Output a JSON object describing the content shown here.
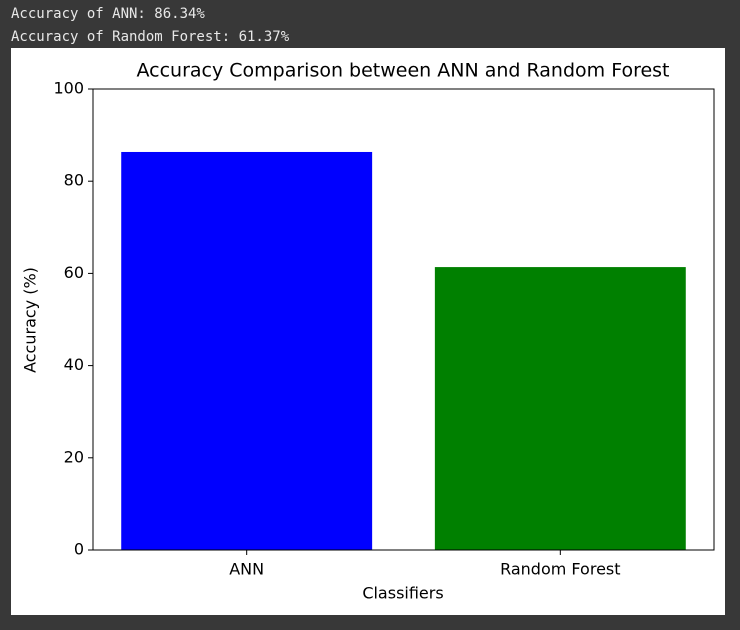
{
  "output_lines": [
    "Accuracy of ANN: 86.34%",
    "Accuracy of Random Forest: 61.37%"
  ],
  "chart_data": {
    "type": "bar",
    "title": "Accuracy Comparison between ANN and Random Forest",
    "x_label": "Classifiers",
    "y_label": "Accuracy (%)",
    "categories": [
      "ANN",
      "Random Forest"
    ],
    "values": [
      86.34,
      61.37
    ],
    "colors": [
      "#0000ff",
      "#008000"
    ],
    "ylim": [
      0,
      100
    ],
    "yticks": [
      0,
      20,
      40,
      60,
      80,
      100
    ],
    "grid": false
  }
}
